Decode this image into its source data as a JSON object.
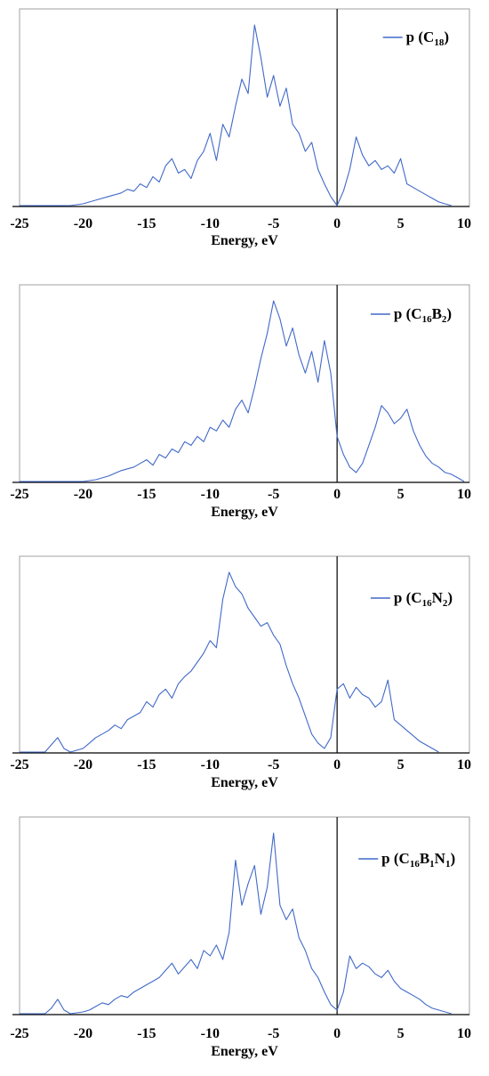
{
  "chart_data": [
    {
      "type": "line",
      "xlabel": "Energy, eV",
      "ylabel": "",
      "xlim": [
        -25,
        10
      ],
      "xticks": [
        "-25",
        "-20",
        "-15",
        "-10",
        "-5",
        "0",
        "5",
        "10"
      ],
      "legend": {
        "position": "top-right",
        "label_parts": [
          [
            "p (C",
            ""
          ],
          [
            "18",
            "sub"
          ],
          [
            ")",
            ""
          ]
        ]
      },
      "series": [
        {
          "name": "p (C18)",
          "color": "#4169c8",
          "x": [
            -25,
            -21,
            -20,
            -19,
            -18,
            -17,
            -16.5,
            -16,
            -15.5,
            -15,
            -14.5,
            -14,
            -13.5,
            -13,
            -12.5,
            -12,
            -11.5,
            -11,
            -10.5,
            -10,
            -9.5,
            -9,
            -8.5,
            -8,
            -7.5,
            -7,
            -6.5,
            -6,
            -5.5,
            -5,
            -4.5,
            -4,
            -3.5,
            -3,
            -2.5,
            -2,
            -1.5,
            -1,
            -0.5,
            0,
            0.5,
            1,
            1.5,
            2,
            2.5,
            3,
            3.5,
            4,
            4.5,
            5,
            5.5,
            6,
            6.5,
            7,
            7.5,
            8,
            8.5,
            9
          ],
          "y": [
            0,
            0,
            0.01,
            0.03,
            0.05,
            0.07,
            0.09,
            0.08,
            0.12,
            0.1,
            0.16,
            0.13,
            0.22,
            0.26,
            0.18,
            0.2,
            0.15,
            0.25,
            0.3,
            0.4,
            0.25,
            0.45,
            0.38,
            0.55,
            0.7,
            0.62,
            1.0,
            0.82,
            0.6,
            0.72,
            0.55,
            0.65,
            0.45,
            0.4,
            0.3,
            0.35,
            0.2,
            0.12,
            0.05,
            0.0,
            0.08,
            0.2,
            0.38,
            0.28,
            0.22,
            0.25,
            0.2,
            0.22,
            0.18,
            0.26,
            0.12,
            0.1,
            0.08,
            0.06,
            0.04,
            0.02,
            0.01,
            0
          ]
        }
      ]
    },
    {
      "type": "line",
      "xlabel": "Energy, eV",
      "ylabel": "",
      "xlim": [
        -25,
        10
      ],
      "xticks": [
        "-25",
        "-20",
        "-15",
        "-10",
        "-5",
        "0",
        "5",
        "10"
      ],
      "legend": {
        "position": "top-right",
        "label_parts": [
          [
            "p (C",
            ""
          ],
          [
            "16",
            "sub"
          ],
          [
            "B",
            ""
          ],
          [
            "2",
            "sub"
          ],
          [
            ")",
            ""
          ]
        ]
      },
      "series": [
        {
          "name": "p (C16B2)",
          "color": "#4169c8",
          "x": [
            -25,
            -20,
            -19,
            -18,
            -17,
            -16,
            -15.5,
            -15,
            -14.5,
            -14,
            -13.5,
            -13,
            -12.5,
            -12,
            -11.5,
            -11,
            -10.5,
            -10,
            -9.5,
            -9,
            -8.5,
            -8,
            -7.5,
            -7,
            -6.5,
            -6,
            -5.5,
            -5,
            -4.5,
            -4,
            -3.5,
            -3,
            -2.5,
            -2,
            -1.5,
            -1,
            -0.5,
            0,
            0.5,
            1,
            1.5,
            2,
            2.5,
            3,
            3.5,
            4,
            4.5,
            5,
            5.5,
            6,
            6.5,
            7,
            7.5,
            8,
            8.5,
            9,
            9.5,
            10
          ],
          "y": [
            0,
            0,
            0.01,
            0.03,
            0.06,
            0.08,
            0.1,
            0.12,
            0.09,
            0.15,
            0.13,
            0.18,
            0.16,
            0.22,
            0.2,
            0.25,
            0.22,
            0.3,
            0.28,
            0.34,
            0.3,
            0.4,
            0.45,
            0.38,
            0.52,
            0.68,
            0.82,
            1.0,
            0.9,
            0.75,
            0.85,
            0.7,
            0.6,
            0.72,
            0.55,
            0.78,
            0.6,
            0.25,
            0.15,
            0.08,
            0.05,
            0.1,
            0.2,
            0.3,
            0.42,
            0.38,
            0.32,
            0.35,
            0.4,
            0.28,
            0.2,
            0.14,
            0.1,
            0.08,
            0.05,
            0.04,
            0.02,
            0.0
          ]
        }
      ]
    },
    {
      "type": "line",
      "xlabel": "Energy, eV",
      "ylabel": "",
      "xlim": [
        -25,
        10
      ],
      "xticks": [
        "-25",
        "-20",
        "-15",
        "-10",
        "-5",
        "0",
        "5",
        "10"
      ],
      "legend": {
        "position": "top-right",
        "label_parts": [
          [
            "p (C",
            ""
          ],
          [
            "16",
            "sub"
          ],
          [
            "N",
            ""
          ],
          [
            "2",
            "sub"
          ],
          [
            ")",
            ""
          ]
        ]
      },
      "series": [
        {
          "name": "p (C16N2)",
          "color": "#4169c8",
          "x": [
            -25,
            -23,
            -22.5,
            -22,
            -21.5,
            -21,
            -20.5,
            -20,
            -19.5,
            -19,
            -18.5,
            -18,
            -17.5,
            -17,
            -16.5,
            -16,
            -15.5,
            -15,
            -14.5,
            -14,
            -13.5,
            -13,
            -12.5,
            -12,
            -11.5,
            -11,
            -10.5,
            -10,
            -9.5,
            -9,
            -8.5,
            -8,
            -7.5,
            -7,
            -6.5,
            -6,
            -5.5,
            -5,
            -4.5,
            -4,
            -3.5,
            -3,
            -2.5,
            -2,
            -1.5,
            -1,
            -0.5,
            0,
            0.5,
            1,
            1.5,
            2,
            2.5,
            3,
            3.5,
            4,
            4.5,
            5,
            5.5,
            6,
            6.5,
            7,
            7.5,
            8
          ],
          "y": [
            0,
            0,
            0.04,
            0.08,
            0.02,
            0.0,
            0.01,
            0.02,
            0.05,
            0.08,
            0.1,
            0.12,
            0.15,
            0.13,
            0.18,
            0.2,
            0.22,
            0.28,
            0.25,
            0.32,
            0.35,
            0.3,
            0.38,
            0.42,
            0.45,
            0.5,
            0.55,
            0.62,
            0.58,
            0.85,
            1.0,
            0.92,
            0.88,
            0.8,
            0.75,
            0.7,
            0.72,
            0.65,
            0.6,
            0.48,
            0.38,
            0.3,
            0.2,
            0.1,
            0.05,
            0.02,
            0.08,
            0.35,
            0.38,
            0.3,
            0.36,
            0.32,
            0.3,
            0.25,
            0.28,
            0.4,
            0.18,
            0.15,
            0.12,
            0.09,
            0.06,
            0.04,
            0.02,
            0.0
          ]
        }
      ]
    },
    {
      "type": "line",
      "xlabel": "Energy, eV",
      "ylabel": "",
      "xlim": [
        -25,
        10
      ],
      "xticks": [
        "-25",
        "-20",
        "-15",
        "-10",
        "-5",
        "0",
        "5",
        "10"
      ],
      "legend": {
        "position": "top-right",
        "label_parts": [
          [
            "p (C",
            ""
          ],
          [
            "16",
            "sub"
          ],
          [
            "B",
            ""
          ],
          [
            "1",
            "sub"
          ],
          [
            "N",
            ""
          ],
          [
            "1",
            "sub"
          ],
          [
            ")",
            ""
          ]
        ]
      },
      "series": [
        {
          "name": "p (C16B1N1)",
          "color": "#4169c8",
          "x": [
            -25,
            -23,
            -22.5,
            -22,
            -21.5,
            -21,
            -20,
            -19.5,
            -19,
            -18.5,
            -18,
            -17.5,
            -17,
            -16.5,
            -16,
            -15.5,
            -15,
            -14.5,
            -14,
            -13.5,
            -13,
            -12.5,
            -12,
            -11.5,
            -11,
            -10.5,
            -10,
            -9.5,
            -9,
            -8.5,
            -8,
            -7.5,
            -7,
            -6.5,
            -6,
            -5.5,
            -5,
            -4.5,
            -4,
            -3.5,
            -3,
            -2.5,
            -2,
            -1.5,
            -1,
            -0.5,
            0,
            0.5,
            1,
            1.5,
            2,
            2.5,
            3,
            3.5,
            4,
            4.5,
            5,
            5.5,
            6,
            6.5,
            7,
            7.5,
            8,
            9
          ],
          "y": [
            0,
            0,
            0.03,
            0.08,
            0.02,
            0.0,
            0.01,
            0.02,
            0.04,
            0.06,
            0.05,
            0.08,
            0.1,
            0.09,
            0.12,
            0.14,
            0.16,
            0.18,
            0.2,
            0.24,
            0.28,
            0.22,
            0.26,
            0.3,
            0.25,
            0.35,
            0.32,
            0.38,
            0.3,
            0.45,
            0.85,
            0.6,
            0.72,
            0.82,
            0.55,
            0.7,
            1.0,
            0.6,
            0.52,
            0.58,
            0.42,
            0.35,
            0.25,
            0.2,
            0.12,
            0.05,
            0.02,
            0.12,
            0.32,
            0.25,
            0.28,
            0.26,
            0.22,
            0.2,
            0.24,
            0.18,
            0.14,
            0.12,
            0.1,
            0.08,
            0.05,
            0.03,
            0.02,
            0.0
          ]
        }
      ]
    }
  ]
}
